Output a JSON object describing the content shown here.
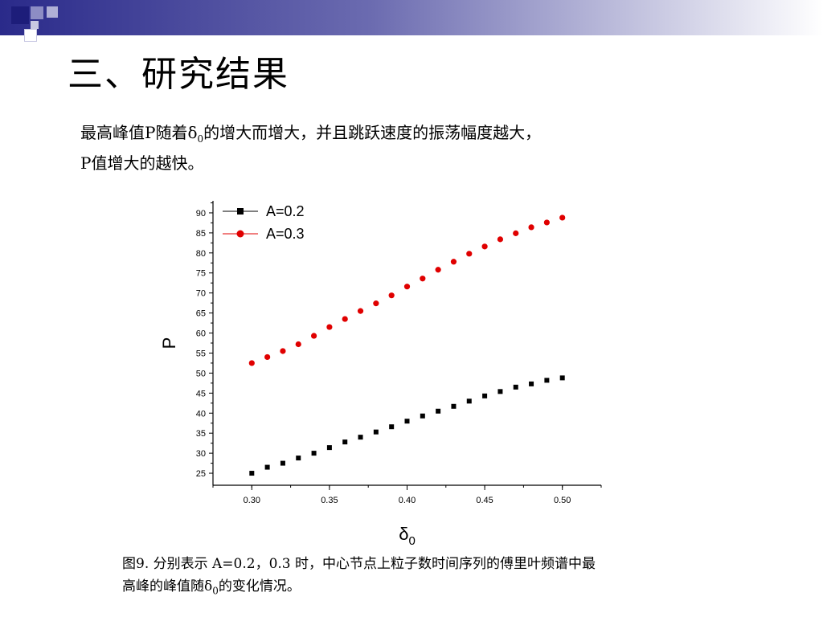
{
  "slide": {
    "title": "三、研究结果",
    "description_line1_a": "最高峰值P随着δ",
    "description_line1_sub": "0",
    "description_line1_b": "的增大而增大，并且跳跃速度的振荡幅度越大，",
    "description_line2": "P值增大的越快。",
    "caption_line1": "图9. 分别表示 A=0.2，0.3 时，中心节点上粒子数时间序列的傅里叶频谱中最",
    "caption_line2_a": "高峰的峰值随δ",
    "caption_line2_sub": "0",
    "caption_line2_b": "的变化情况。"
  },
  "colors": {
    "header_dark": "#2a2a8a",
    "series_black": "#000000",
    "series_red": "#e00000"
  },
  "chart_data": {
    "type": "scatter",
    "xlabel": "δ",
    "xlabel_sub": "0",
    "ylabel": "P",
    "xlim": [
      0.275,
      0.525
    ],
    "ylim": [
      22,
      93
    ],
    "x_ticks": [
      "0.30",
      "0.35",
      "0.40",
      "0.45",
      "0.50"
    ],
    "y_ticks": [
      "25",
      "30",
      "35",
      "40",
      "45",
      "50",
      "55",
      "60",
      "65",
      "70",
      "75",
      "80",
      "85",
      "90"
    ],
    "legend_position": "top-left",
    "series": [
      {
        "name": "A=0.2",
        "marker": "square",
        "color": "#000000",
        "x": [
          0.3,
          0.31,
          0.32,
          0.33,
          0.34,
          0.35,
          0.36,
          0.37,
          0.38,
          0.39,
          0.4,
          0.41,
          0.42,
          0.43,
          0.44,
          0.45,
          0.46,
          0.47,
          0.48,
          0.49,
          0.5
        ],
        "y": [
          25.0,
          26.5,
          27.5,
          28.8,
          30.0,
          31.4,
          32.8,
          34.0,
          35.3,
          36.6,
          38.0,
          39.3,
          40.5,
          41.7,
          43.0,
          44.3,
          45.4,
          46.5,
          47.3,
          48.2,
          48.8
        ]
      },
      {
        "name": "A=0.3",
        "marker": "circle",
        "color": "#e00000",
        "x": [
          0.3,
          0.31,
          0.32,
          0.33,
          0.34,
          0.35,
          0.36,
          0.37,
          0.38,
          0.39,
          0.4,
          0.41,
          0.42,
          0.43,
          0.44,
          0.45,
          0.46,
          0.47,
          0.48,
          0.49,
          0.5
        ],
        "y": [
          52.5,
          54.0,
          55.5,
          57.2,
          59.3,
          61.5,
          63.5,
          65.5,
          67.4,
          69.4,
          71.6,
          73.6,
          75.8,
          77.8,
          79.8,
          81.6,
          83.4,
          84.9,
          86.4,
          87.6,
          88.8
        ]
      }
    ]
  }
}
